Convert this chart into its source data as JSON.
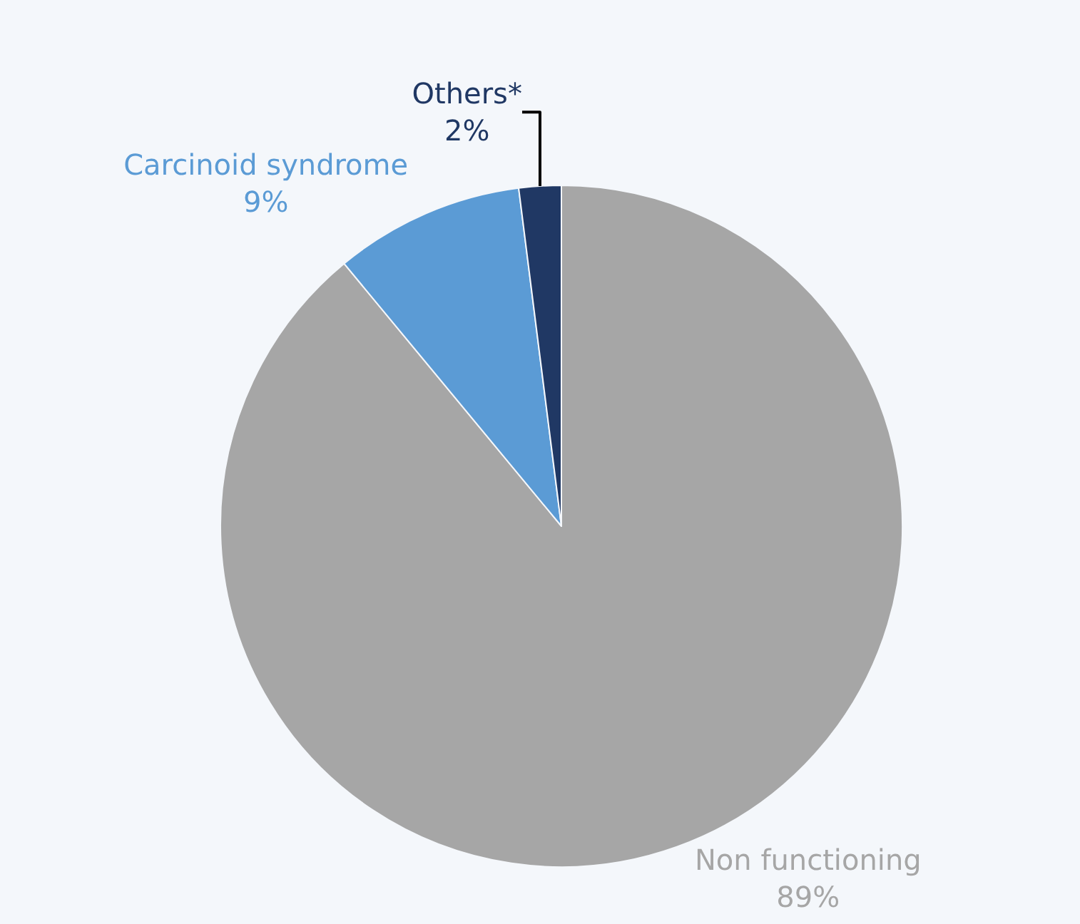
{
  "chart_data": {
    "type": "pie",
    "categories": [
      "Non functioning",
      "Carcinoid syndrome",
      "Others*"
    ],
    "values": [
      89,
      9,
      2
    ],
    "value_labels": [
      "89%",
      "9%",
      "2%"
    ],
    "colors": [
      "#a6a6a6",
      "#5b9bd5",
      "#203864"
    ],
    "legend": false
  }
}
